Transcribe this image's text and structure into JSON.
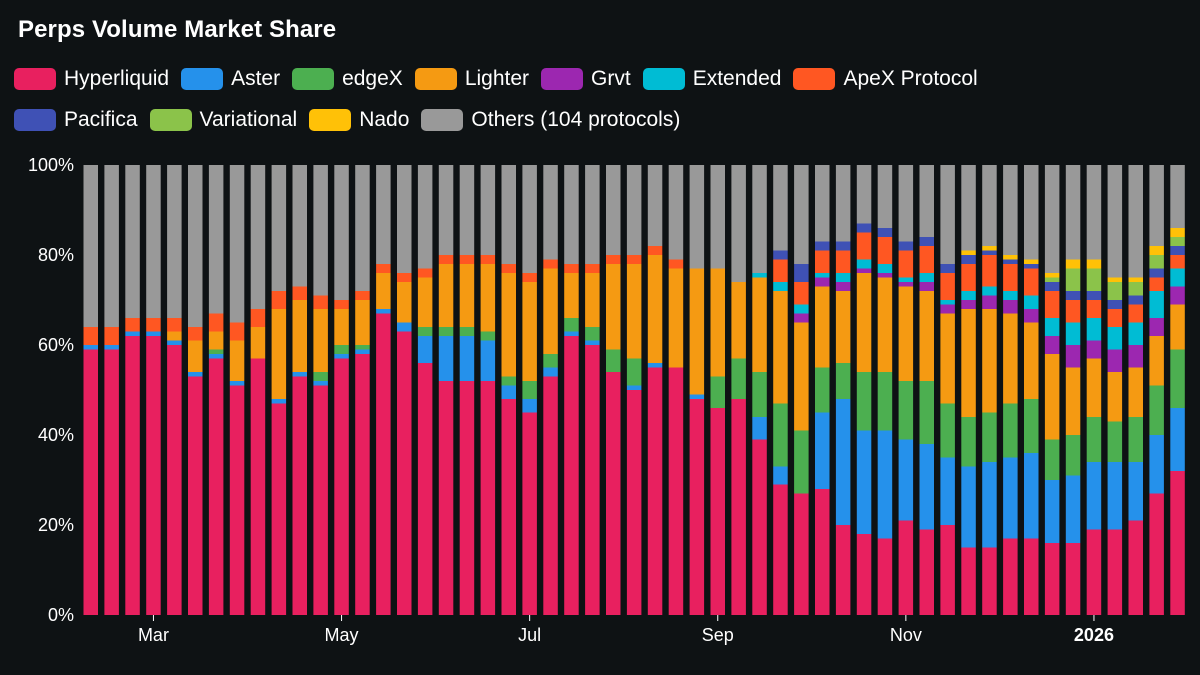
{
  "chart_data": {
    "type": "bar",
    "stacked": true,
    "title": "Perps Volume Market Share",
    "ylim": [
      0,
      100
    ],
    "y_ticks": [
      "0%",
      "20%",
      "40%",
      "60%",
      "80%",
      "100%"
    ],
    "x_tick_labels": [
      {
        "label": "Mar",
        "at_bar": 3,
        "bold": false
      },
      {
        "label": "May",
        "at_bar": 12,
        "bold": false
      },
      {
        "label": "Jul",
        "at_bar": 21,
        "bold": false
      },
      {
        "label": "Sep",
        "at_bar": 30,
        "bold": false
      },
      {
        "label": "Nov",
        "at_bar": 39,
        "bold": false
      },
      {
        "label": "2026",
        "at_bar": 48,
        "bold": true
      }
    ],
    "legend_placement": "top-left",
    "series": [
      {
        "name": "Hyperliquid",
        "color": "#e8205f",
        "values": [
          59,
          59,
          62,
          62,
          60,
          53,
          57,
          51,
          57,
          47,
          53,
          51,
          57,
          58,
          67,
          63,
          56,
          52,
          52,
          52,
          48,
          45,
          53,
          62,
          60,
          54,
          50,
          55,
          55,
          48,
          46,
          48,
          39,
          29,
          27,
          28,
          20,
          18,
          17,
          21,
          19,
          20,
          15,
          15,
          17,
          17,
          16,
          16,
          19,
          19,
          21,
          27,
          32
        ]
      },
      {
        "name": "Aster",
        "color": "#2591eb",
        "values": [
          1,
          1,
          1,
          1,
          1,
          1,
          1,
          1,
          0,
          1,
          1,
          1,
          1,
          1,
          1,
          2,
          6,
          10,
          10,
          9,
          3,
          3,
          2,
          1,
          1,
          0,
          1,
          1,
          0,
          1,
          0,
          0,
          5,
          4,
          0,
          17,
          28,
          23,
          24,
          18,
          19,
          15,
          18,
          19,
          18,
          19,
          14,
          15,
          15,
          15,
          13,
          13,
          14
        ]
      },
      {
        "name": "edgeX",
        "color": "#4caf50",
        "values": [
          0,
          0,
          0,
          0,
          0,
          0,
          1,
          0,
          0,
          0,
          0,
          2,
          2,
          1,
          0,
          0,
          2,
          2,
          2,
          2,
          2,
          4,
          3,
          3,
          3,
          5,
          6,
          0,
          0,
          0,
          7,
          9,
          10,
          14,
          14,
          10,
          8,
          13,
          13,
          13,
          14,
          12,
          11,
          11,
          12,
          12,
          9,
          9,
          10,
          9,
          10,
          11,
          13
        ]
      },
      {
        "name": "Lighter",
        "color": "#f59a12",
        "values": [
          0,
          0,
          0,
          0,
          2,
          7,
          4,
          9,
          7,
          20,
          16,
          14,
          8,
          10,
          8,
          9,
          11,
          14,
          14,
          15,
          23,
          22,
          19,
          10,
          12,
          19,
          21,
          24,
          22,
          28,
          24,
          17,
          21,
          25,
          24,
          18,
          16,
          22,
          21,
          21,
          20,
          20,
          24,
          23,
          20,
          17,
          19,
          15,
          13,
          11,
          11,
          11,
          10
        ]
      },
      {
        "name": "Grvt",
        "color": "#9c27b0",
        "values": [
          0,
          0,
          0,
          0,
          0,
          0,
          0,
          0,
          0,
          0,
          0,
          0,
          0,
          0,
          0,
          0,
          0,
          0,
          0,
          0,
          0,
          0,
          0,
          0,
          0,
          0,
          0,
          0,
          0,
          0,
          0,
          0,
          0,
          0,
          2,
          2,
          2,
          1,
          1,
          1,
          2,
          2,
          2,
          3,
          3,
          3,
          4,
          5,
          4,
          5,
          5,
          4,
          4
        ]
      },
      {
        "name": "Extended",
        "color": "#00bcd4",
        "values": [
          0,
          0,
          0,
          0,
          0,
          0,
          0,
          0,
          0,
          0,
          0,
          0,
          0,
          0,
          0,
          0,
          0,
          0,
          0,
          0,
          0,
          0,
          0,
          0,
          0,
          0,
          0,
          0,
          0,
          0,
          0,
          0,
          1,
          2,
          2,
          1,
          2,
          2,
          2,
          1,
          2,
          1,
          2,
          2,
          2,
          3,
          4,
          5,
          5,
          5,
          5,
          6,
          4
        ]
      },
      {
        "name": "ApeX Protocol",
        "color": "#ff5722",
        "values": [
          4,
          4,
          3,
          3,
          3,
          3,
          4,
          4,
          4,
          4,
          3,
          3,
          2,
          2,
          2,
          2,
          2,
          2,
          2,
          2,
          2,
          2,
          2,
          2,
          2,
          2,
          2,
          2,
          2,
          0,
          0,
          0,
          0,
          5,
          5,
          5,
          5,
          6,
          6,
          6,
          6,
          6,
          6,
          7,
          6,
          6,
          6,
          5,
          4,
          4,
          4,
          3,
          3
        ]
      },
      {
        "name": "Pacifica",
        "color": "#3f51b5",
        "values": [
          0,
          0,
          0,
          0,
          0,
          0,
          0,
          0,
          0,
          0,
          0,
          0,
          0,
          0,
          0,
          0,
          0,
          0,
          0,
          0,
          0,
          0,
          0,
          0,
          0,
          0,
          0,
          0,
          0,
          0,
          0,
          0,
          0,
          2,
          4,
          2,
          2,
          2,
          2,
          2,
          2,
          2,
          2,
          1,
          1,
          1,
          2,
          2,
          2,
          2,
          2,
          2,
          2
        ]
      },
      {
        "name": "Variational",
        "color": "#8bc34a",
        "values": [
          0,
          0,
          0,
          0,
          0,
          0,
          0,
          0,
          0,
          0,
          0,
          0,
          0,
          0,
          0,
          0,
          0,
          0,
          0,
          0,
          0,
          0,
          0,
          0,
          0,
          0,
          0,
          0,
          0,
          0,
          0,
          0,
          0,
          0,
          0,
          0,
          0,
          0,
          0,
          0,
          0,
          0,
          0,
          0,
          0,
          0,
          1,
          5,
          5,
          4,
          3,
          3,
          2
        ]
      },
      {
        "name": "Nado",
        "color": "#ffc107",
        "values": [
          0,
          0,
          0,
          0,
          0,
          0,
          0,
          0,
          0,
          0,
          0,
          0,
          0,
          0,
          0,
          0,
          0,
          0,
          0,
          0,
          0,
          0,
          0,
          0,
          0,
          0,
          0,
          0,
          0,
          0,
          0,
          0,
          0,
          0,
          0,
          0,
          0,
          0,
          0,
          0,
          0,
          0,
          1,
          1,
          1,
          1,
          1,
          2,
          2,
          1,
          1,
          2,
          2
        ]
      },
      {
        "name": "Others (104 protocols)",
        "color": "#999999",
        "values": [
          36,
          36,
          34,
          34,
          34,
          36,
          33,
          35,
          32,
          28,
          27,
          29,
          30,
          28,
          22,
          24,
          23,
          20,
          20,
          20,
          22,
          24,
          21,
          22,
          22,
          20,
          20,
          18,
          21,
          23,
          23,
          26,
          24,
          19,
          22,
          17,
          17,
          13,
          14,
          17,
          16,
          22,
          19,
          18,
          20,
          21,
          24,
          21,
          21,
          25,
          25,
          18,
          14
        ]
      }
    ]
  }
}
